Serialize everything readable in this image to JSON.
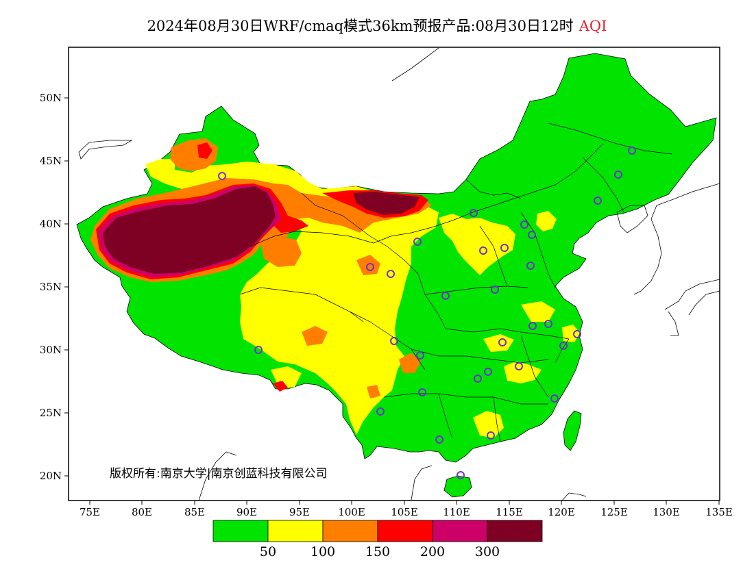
{
  "title": {
    "text": "2024年08月30日WRF/cmaq模式36km预报产品:08月30日12时",
    "variable": "AQI"
  },
  "map": {
    "region": "China",
    "projection": "lat-lon",
    "lon_range": [
      73,
      135
    ],
    "lat_range": [
      18,
      54
    ],
    "x_ticks": [
      "75E",
      "80E",
      "85E",
      "90E",
      "95E",
      "100E",
      "105E",
      "110E",
      "115E",
      "120E",
      "125E",
      "130E",
      "135E"
    ],
    "y_ticks": [
      "50N",
      "45N",
      "40N",
      "35N",
      "30N",
      "25N",
      "20N"
    ],
    "copyright": "版权所有:南京大学|南京创蓝科技有限公司"
  },
  "colorbar": {
    "colors": [
      "#00e400",
      "#ffff00",
      "#ff7e00",
      "#ff0000",
      "#cc0066",
      "#7e0023"
    ],
    "labels": [
      "50",
      "100",
      "150",
      "200",
      "300"
    ]
  },
  "colors": {
    "good": "#00e400",
    "moderate": "#ffff00",
    "sensitive": "#ff7e00",
    "unhealthy": "#ff0000",
    "very_unhealthy": "#cc0066",
    "hazardous": "#7e0023",
    "station_marker": "#7030d0"
  }
}
